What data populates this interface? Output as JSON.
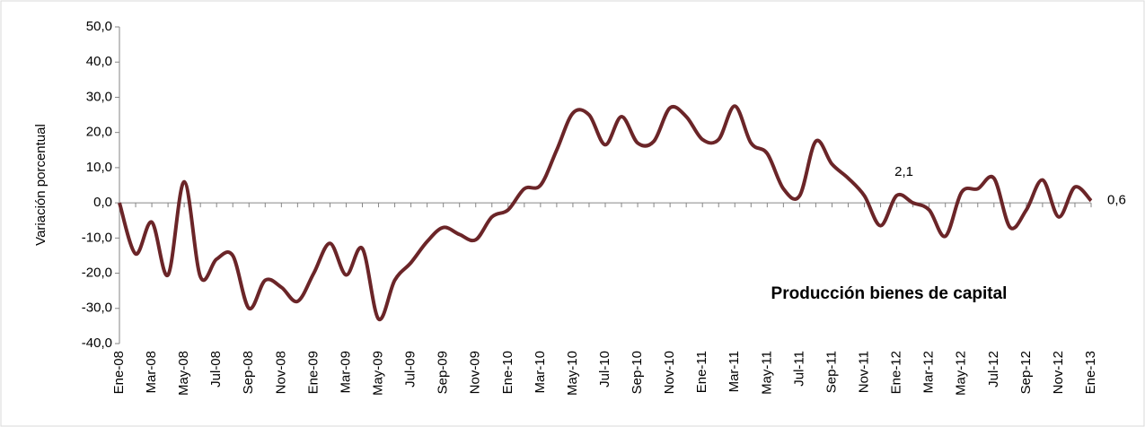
{
  "chart_data": {
    "type": "line",
    "title": "Producción bienes de capital",
    "y_label": "Variación porcentual",
    "categories": [
      "Ene-08",
      null,
      "Mar-08",
      null,
      "May-08",
      null,
      "Jul-08",
      null,
      "Sep-08",
      null,
      "Nov-08",
      null,
      "Ene-09",
      null,
      "Mar-09",
      null,
      "May-09",
      null,
      "Jul-09",
      null,
      "Sep-09",
      null,
      "Nov-09",
      null,
      "Ene-10",
      null,
      "Mar-10",
      null,
      "May-10",
      null,
      "Jul-10",
      null,
      "Sep-10",
      null,
      "Nov-10",
      null,
      "Ene-11",
      null,
      "Mar-11",
      null,
      "May-11",
      null,
      "Jul-11",
      null,
      "Sep-11",
      null,
      "Nov-11",
      null,
      "Ene-12",
      null,
      "Mar-12",
      null,
      "May-12",
      null,
      "Jul-12",
      null,
      "Sep-12",
      null,
      "Nov-12",
      null,
      "Ene-13"
    ],
    "series": [
      {
        "name": "Producción bienes de capital",
        "color": "#6b2528",
        "values": [
          0,
          -14.5,
          -5.5,
          -20.5,
          6,
          -21,
          -16,
          -15,
          -30,
          -22,
          -24,
          -28,
          -20,
          -11.5,
          -20.5,
          -13,
          -33,
          -22,
          -17,
          -11,
          -7,
          -9,
          -10.5,
          -4,
          -2,
          4,
          5,
          15,
          25.5,
          25,
          16.5,
          24.5,
          17,
          17.5,
          27,
          24.5,
          18,
          18,
          27.5,
          17,
          14,
          4,
          2,
          17.5,
          11,
          7,
          2,
          -6.5,
          2.1,
          0,
          -2,
          -9.5,
          3,
          4,
          7,
          -7,
          -2,
          6.5,
          -4,
          4.5,
          0.6
        ],
        "value_labels": [
          null,
          null,
          null,
          null,
          null,
          null,
          null,
          null,
          null,
          null,
          null,
          null,
          null,
          null,
          null,
          null,
          null,
          null,
          null,
          null,
          null,
          null,
          null,
          null,
          null,
          null,
          null,
          null,
          null,
          null,
          null,
          null,
          null,
          null,
          null,
          null,
          null,
          null,
          null,
          null,
          null,
          null,
          null,
          null,
          null,
          null,
          null,
          null,
          "2,1",
          null,
          null,
          null,
          null,
          null,
          null,
          null,
          null,
          null,
          null,
          null,
          "0,6"
        ]
      }
    ],
    "ylim": [
      -40,
      50
    ],
    "yticks": [
      {
        "value": -40,
        "label": "-40,0"
      },
      {
        "value": -30,
        "label": "-30,0"
      },
      {
        "value": -20,
        "label": "-20,0"
      },
      {
        "value": -10,
        "label": "-10,0"
      },
      {
        "value": 0,
        "label": "0,0"
      },
      {
        "value": 10,
        "label": "10,0"
      },
      {
        "value": 20,
        "label": "20,0"
      },
      {
        "value": 30,
        "label": "30,0"
      },
      {
        "value": 40,
        "label": "40,0"
      },
      {
        "value": 50,
        "label": "50,0"
      }
    ],
    "grid": false
  }
}
